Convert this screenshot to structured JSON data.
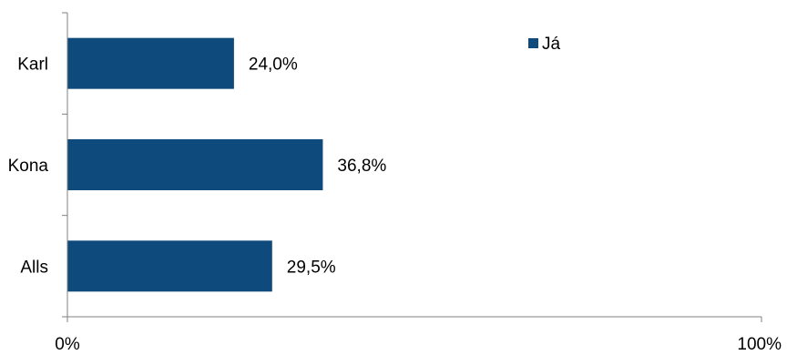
{
  "chart_data": {
    "type": "bar",
    "orientation": "horizontal",
    "categories": [
      "Karl",
      "Kona",
      "Alls"
    ],
    "series": [
      {
        "name": "Já",
        "values": [
          24.0,
          36.8,
          29.5
        ],
        "labels": [
          "24,0%",
          "36,8%",
          "29,5%"
        ],
        "color": "#0f4a7c"
      }
    ],
    "title": "",
    "xlabel": "",
    "ylabel": "",
    "xlim": [
      0,
      100
    ],
    "xticks": [
      0,
      100
    ],
    "xtick_labels": [
      "0%",
      "100%"
    ],
    "grid": false,
    "legend": {
      "position": "top-right",
      "entries": [
        "Já"
      ]
    }
  }
}
